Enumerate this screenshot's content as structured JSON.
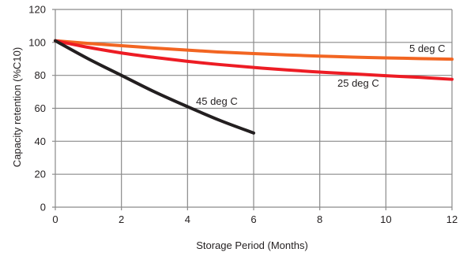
{
  "chart_data": {
    "type": "line",
    "xlabel": "Storage Period (Months)",
    "ylabel": "Capacity retention (%C10)",
    "xlim": [
      0,
      12
    ],
    "ylim": [
      0,
      120
    ],
    "x_ticks": [
      0,
      2,
      4,
      6,
      8,
      10,
      12
    ],
    "y_ticks": [
      0,
      20,
      40,
      60,
      80,
      100,
      120
    ],
    "grid": true,
    "series": [
      {
        "name": "5 deg C",
        "color": "#f26522",
        "x": [
          0,
          1,
          2,
          3,
          4,
          5,
          6,
          7,
          8,
          9,
          10,
          11,
          12
        ],
        "y": [
          101,
          99.4,
          98,
          96.6,
          95.3,
          94.1,
          93.2,
          92.4,
          91.7,
          91.1,
          90.6,
          90.2,
          89.8
        ]
      },
      {
        "name": "25 deg C",
        "color": "#ed1c24",
        "x": [
          0,
          1,
          2,
          3,
          4,
          5,
          6,
          7,
          8,
          9,
          10,
          11,
          12
        ],
        "y": [
          101,
          97,
          93.6,
          90.9,
          88.5,
          86.5,
          84.8,
          83.3,
          82,
          80.9,
          79.8,
          78.8,
          77.6
        ]
      },
      {
        "name": "45 deg C",
        "color": "#231f20",
        "x": [
          0,
          1,
          2,
          3,
          4,
          5,
          6
        ],
        "y": [
          101,
          90,
          80,
          70,
          61,
          52.5,
          45
        ]
      }
    ]
  }
}
